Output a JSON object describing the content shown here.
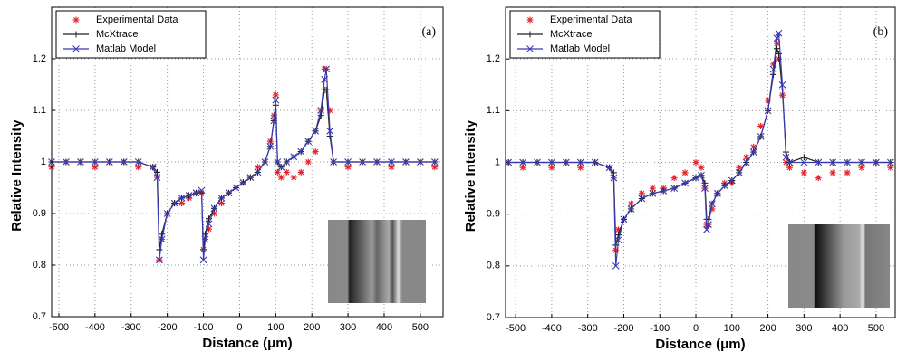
{
  "chart_data": [
    {
      "type": "line",
      "label": "(a)",
      "xlabel": "Distance (μm)",
      "ylabel": "Relative Intensity",
      "x": [
        -520,
        -480,
        -440,
        -400,
        -360,
        -320,
        -280,
        -240,
        -228,
        -222,
        -215,
        -200,
        -180,
        -160,
        -140,
        -120,
        -105,
        -100,
        -95,
        -85,
        -70,
        -50,
        -30,
        -10,
        10,
        30,
        50,
        70,
        85,
        95,
        100,
        105,
        115,
        130,
        150,
        170,
        190,
        210,
        225,
        235,
        240,
        250,
        260,
        300,
        340,
        380,
        420,
        460,
        500,
        540
      ],
      "series": [
        {
          "name": "Experimental Data",
          "color": "#e8202a",
          "marker": "star",
          "line": false,
          "values": [
            0.99,
            1.0,
            1.0,
            0.99,
            1.0,
            1.0,
            0.99,
            0.99,
            0.97,
            0.81,
            0.85,
            0.9,
            0.92,
            0.92,
            0.93,
            0.94,
            0.94,
            0.83,
            0.85,
            0.87,
            0.9,
            0.92,
            0.94,
            0.95,
            0.96,
            0.97,
            0.99,
            1.0,
            1.04,
            1.09,
            1.13,
            0.98,
            0.97,
            0.98,
            0.97,
            0.98,
            1.0,
            1.02,
            1.1,
            1.18,
            1.18,
            1.1,
            1.0,
            0.99,
            1.0,
            1.0,
            0.99,
            1.0,
            1.0,
            0.99
          ]
        },
        {
          "name": "McXtrace",
          "color": "#222222",
          "marker": "plus",
          "line": true,
          "values": [
            1,
            1,
            1,
            1,
            1,
            1,
            1,
            0.99,
            0.98,
            0.83,
            0.86,
            0.9,
            0.92,
            0.93,
            0.935,
            0.94,
            0.94,
            0.83,
            0.86,
            0.89,
            0.91,
            0.93,
            0.94,
            0.95,
            0.96,
            0.97,
            0.98,
            1.0,
            1.03,
            1.08,
            1.11,
            1.0,
            0.99,
            1.0,
            1.01,
            1.02,
            1.04,
            1.06,
            1.09,
            1.14,
            1.14,
            1.05,
            1.0,
            1,
            1,
            1,
            1,
            1,
            1,
            1
          ]
        },
        {
          "name": "Matlab Model",
          "color": "#3a3ab0",
          "marker": "cross",
          "line": true,
          "values": [
            1,
            1,
            1,
            1,
            1,
            1,
            1,
            0.99,
            0.97,
            0.81,
            0.85,
            0.9,
            0.92,
            0.93,
            0.935,
            0.94,
            0.945,
            0.81,
            0.85,
            0.88,
            0.91,
            0.93,
            0.94,
            0.95,
            0.96,
            0.97,
            0.98,
            1.0,
            1.03,
            1.08,
            1.12,
            1.0,
            0.99,
            1.0,
            1.01,
            1.02,
            1.04,
            1.06,
            1.1,
            1.16,
            1.18,
            1.06,
            1.0,
            1,
            1,
            1,
            1,
            1,
            1,
            1
          ]
        }
      ],
      "xlim": [
        -520,
        563
      ],
      "ylim": [
        0.7,
        1.3
      ],
      "xticks": [
        -500,
        -400,
        -300,
        -200,
        -100,
        0,
        100,
        200,
        300,
        400,
        500
      ],
      "yticks": [
        0.7,
        0.8,
        0.9,
        1,
        1.1,
        1.2
      ],
      "grid": true,
      "legend": "upper left"
    },
    {
      "type": "line",
      "label": "(b)",
      "xlabel": "Distance (μm)",
      "ylabel": "Relative Intensity",
      "x": [
        -520,
        -480,
        -440,
        -400,
        -360,
        -320,
        -280,
        -240,
        -228,
        -222,
        -215,
        -200,
        -180,
        -150,
        -120,
        -90,
        -60,
        -30,
        0,
        15,
        25,
        30,
        35,
        45,
        60,
        80,
        100,
        120,
        140,
        160,
        180,
        200,
        215,
        225,
        230,
        240,
        250,
        260,
        300,
        340,
        380,
        420,
        460,
        500,
        540
      ],
      "series": [
        {
          "name": "Experimental Data",
          "color": "#e8202a",
          "marker": "star",
          "line": false,
          "values": [
            1.0,
            0.99,
            1.0,
            0.99,
            1.0,
            0.99,
            1.0,
            0.99,
            0.97,
            0.83,
            0.87,
            0.89,
            0.92,
            0.94,
            0.95,
            0.95,
            0.97,
            0.98,
            1.0,
            0.99,
            0.95,
            0.88,
            0.88,
            0.91,
            0.94,
            0.96,
            0.96,
            0.99,
            1.01,
            1.03,
            1.07,
            1.12,
            1.19,
            1.23,
            1.2,
            1.13,
            1.0,
            0.99,
            0.98,
            0.97,
            0.98,
            0.98,
            0.99,
            1.0,
            0.99
          ]
        },
        {
          "name": "McXtrace",
          "color": "#222222",
          "marker": "plus",
          "line": true,
          "values": [
            1,
            1,
            1,
            1,
            1,
            1,
            1,
            0.99,
            0.98,
            0.84,
            0.86,
            0.89,
            0.91,
            0.93,
            0.94,
            0.945,
            0.95,
            0.96,
            0.97,
            0.975,
            0.96,
            0.89,
            0.89,
            0.92,
            0.94,
            0.955,
            0.965,
            0.98,
            1.0,
            1.02,
            1.05,
            1.1,
            1.17,
            1.22,
            1.21,
            1.14,
            1.02,
            1.0,
            1.01,
            1.0,
            1.0,
            1.0,
            1.0,
            1.0,
            1.0
          ]
        },
        {
          "name": "Matlab Model",
          "color": "#3a3ab0",
          "marker": "cross",
          "line": true,
          "values": [
            1,
            1,
            1,
            1,
            1,
            1,
            1,
            0.99,
            0.97,
            0.8,
            0.85,
            0.89,
            0.91,
            0.93,
            0.94,
            0.945,
            0.95,
            0.96,
            0.97,
            0.975,
            0.95,
            0.87,
            0.88,
            0.92,
            0.94,
            0.955,
            0.965,
            0.98,
            1.0,
            1.02,
            1.05,
            1.1,
            1.18,
            1.24,
            1.25,
            1.15,
            1.01,
            1.0,
            1.0,
            1.0,
            1.0,
            1.0,
            1.0,
            1.0,
            1.0
          ]
        }
      ],
      "xlim": [
        -528,
        553
      ],
      "ylim": [
        0.7,
        1.3
      ],
      "xticks": [
        -500,
        -400,
        -300,
        -200,
        -100,
        0,
        100,
        200,
        300,
        400,
        500
      ],
      "yticks": [
        0.7,
        0.8,
        0.9,
        1,
        1.1,
        1.2
      ],
      "grid": true,
      "legend": "upper left"
    }
  ]
}
